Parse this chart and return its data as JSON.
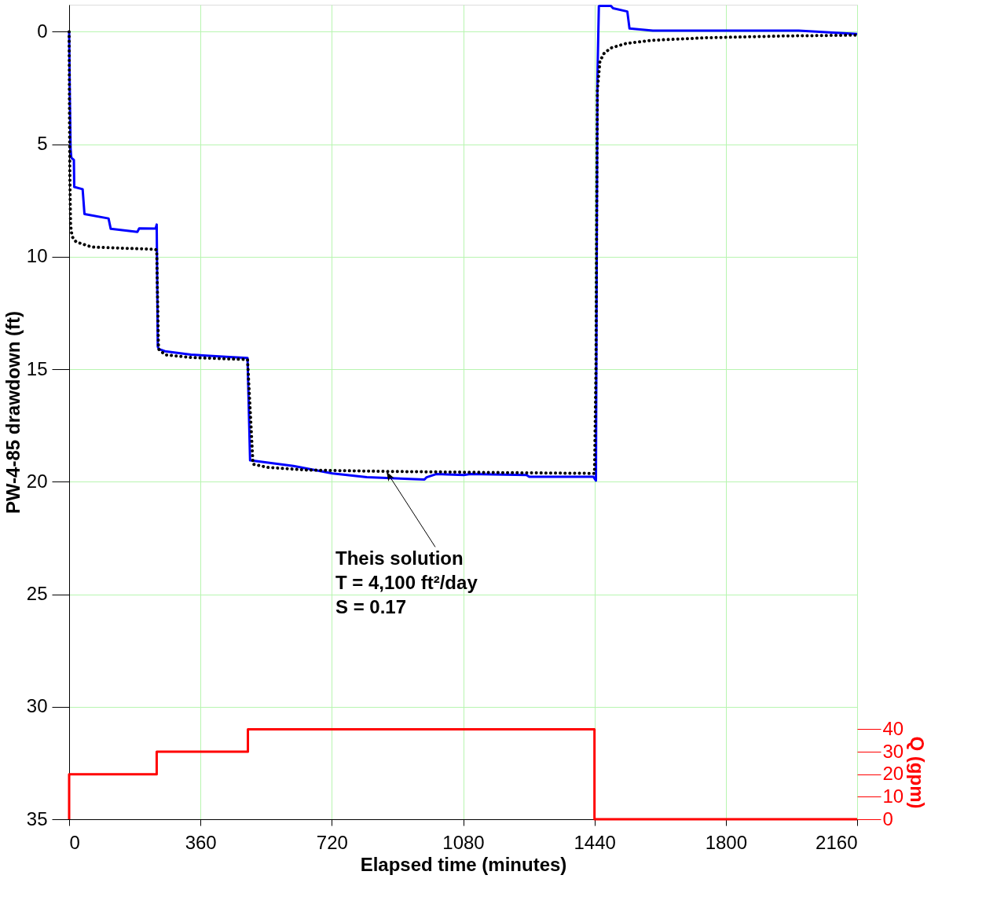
{
  "chart_data": {
    "type": "line",
    "xlabel": "Elapsed time (minutes)",
    "ylabel": "PW-4-85 drawdown (ft)",
    "y2label": "Q (gpm)",
    "xlim": [
      0,
      2160
    ],
    "xticks": [
      0,
      360,
      720,
      1080,
      1440,
      1800,
      2160
    ],
    "ylim": [
      35,
      -1.2
    ],
    "yticks": [
      0,
      5,
      10,
      15,
      20,
      25,
      30,
      35
    ],
    "y2lim": [
      0,
      362
    ],
    "y2ticks": [
      0,
      10,
      20,
      30,
      40
    ],
    "grid": true,
    "series": [
      {
        "color": "#0000ff",
        "line_style": "solid",
        "x": [
          0,
          2,
          4,
          6,
          13,
          14,
          37,
          42,
          108,
          114,
          187,
          192,
          237,
          240,
          243,
          246,
          263,
          334,
          430,
          489,
          496,
          615,
          722,
          816,
          974,
          980,
          1006,
          1082,
          1099,
          1254,
          1261,
          1437,
          1444,
          1448,
          1452,
          1455,
          1485,
          1491,
          1530,
          1536,
          1600,
          2000,
          2160
        ],
        "values": [
          0,
          3,
          5.2,
          5.6,
          5.7,
          6.9,
          7.0,
          8.1,
          8.3,
          8.76,
          8.9,
          8.74,
          8.75,
          8.57,
          14.0,
          14.1,
          14.2,
          14.35,
          14.45,
          14.5,
          19.05,
          19.3,
          19.63,
          19.8,
          19.9,
          19.8,
          19.66,
          19.7,
          19.66,
          19.7,
          19.78,
          19.78,
          19.95,
          2.1,
          -1.13,
          -1.15,
          -1.15,
          -1.04,
          -0.9,
          -0.14,
          -0.05,
          -0.05,
          0.1
        ]
      },
      {
        "color": "#000000",
        "line_style": "dotted",
        "x": [
          0,
          1,
          2,
          4,
          8,
          19,
          62,
          234,
          240,
          245,
          263,
          334,
          489,
          504,
          543,
          651,
          866,
          1225,
          1437,
          1440,
          1444,
          1446,
          1448,
          1455,
          1466,
          1484,
          1527,
          1599,
          1743,
          1958,
          2160
        ],
        "values": [
          0,
          4,
          6.5,
          8.6,
          9.1,
          9.34,
          9.57,
          9.67,
          9.7,
          14.1,
          14.36,
          14.48,
          14.57,
          19.22,
          19.36,
          19.48,
          19.54,
          19.6,
          19.63,
          19.63,
          15,
          8,
          2.59,
          1.31,
          0.97,
          0.73,
          0.52,
          0.38,
          0.27,
          0.19,
          0.15
        ]
      },
      {
        "type": "step",
        "axis": "y2",
        "color": "#ff0000",
        "line_style": "solid",
        "x": [
          0,
          0,
          240,
          490,
          1440,
          2160
        ],
        "values": [
          0,
          20,
          30,
          40,
          0,
          0
        ]
      }
    ],
    "annotations": [
      {
        "text": "Theis solution\nT = 4,100 ft²/day\nS = 0.17",
        "x": 870,
        "y": 19.55
      }
    ]
  }
}
